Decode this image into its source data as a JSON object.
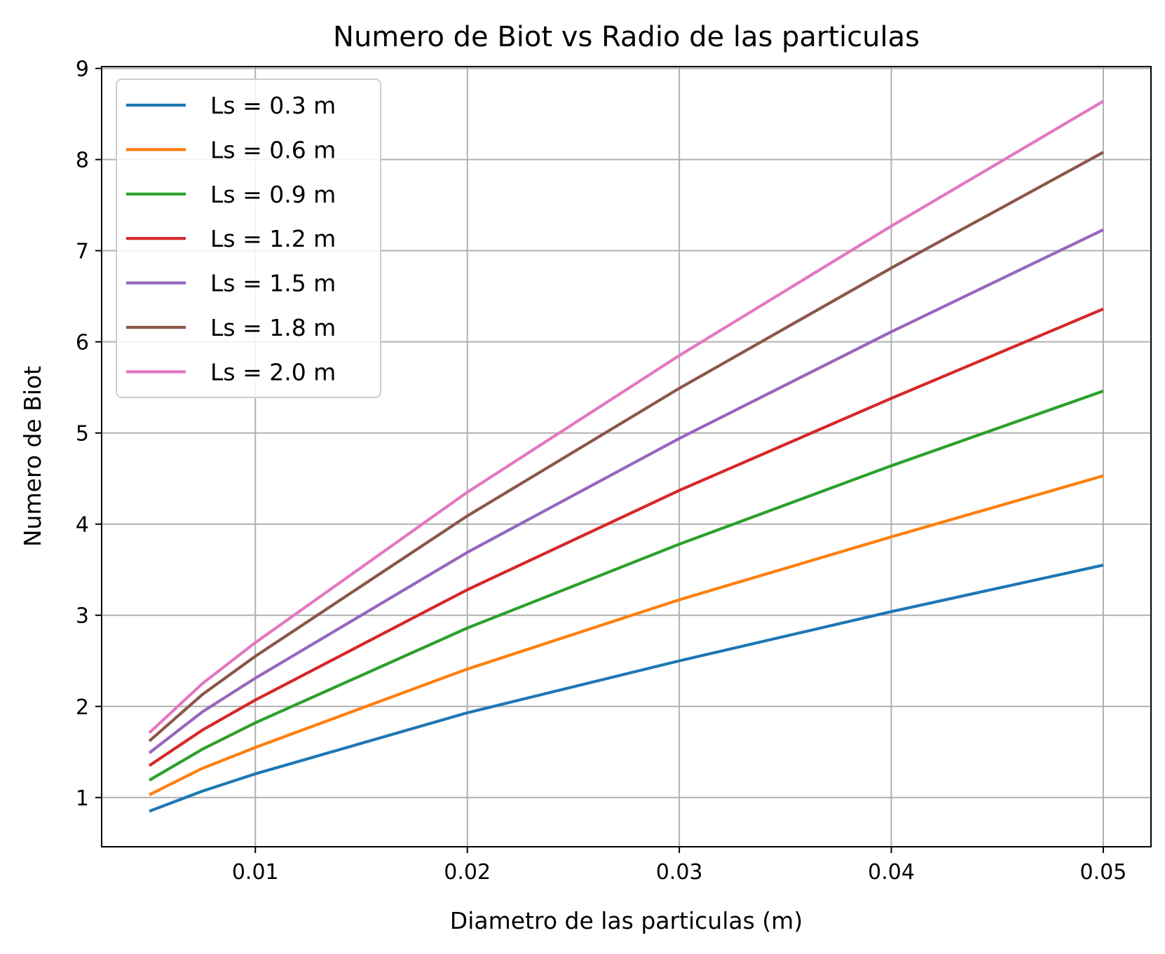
{
  "chart_data": {
    "type": "line",
    "title": "Numero de Biot vs Radio de las particulas",
    "xlabel": "Diametro de las particulas (m)",
    "ylabel": "Numero de Biot",
    "xlim": [
      0.00275,
      0.05225
    ],
    "ylim": [
      0.46,
      9.02
    ],
    "xticks": [
      0.01,
      0.02,
      0.03,
      0.04,
      0.05
    ],
    "xtick_labels": [
      "0.01",
      "0.02",
      "0.03",
      "0.04",
      "0.05"
    ],
    "yticks": [
      1,
      2,
      3,
      4,
      5,
      6,
      7,
      8,
      9
    ],
    "ytick_labels": [
      "1",
      "2",
      "3",
      "4",
      "5",
      "6",
      "7",
      "8",
      "9"
    ],
    "grid": true,
    "legend_position": "top-left",
    "x": [
      0.005,
      0.0075,
      0.01,
      0.02,
      0.03,
      0.04,
      0.05
    ],
    "series": [
      {
        "name": "Ls = 0.3 m",
        "color": "#1f77b4",
        "values": [
          0.85,
          1.07,
          1.26,
          1.93,
          2.5,
          3.04,
          3.55
        ]
      },
      {
        "name": "Ls = 0.6 m",
        "color": "#ff7f0e",
        "values": [
          1.03,
          1.32,
          1.55,
          2.41,
          3.17,
          3.86,
          4.53
        ]
      },
      {
        "name": "Ls = 0.9 m",
        "color": "#2ca02c",
        "values": [
          1.19,
          1.53,
          1.82,
          2.86,
          3.78,
          4.64,
          5.46
        ]
      },
      {
        "name": "Ls = 1.2 m",
        "color": "#d62728",
        "values": [
          1.35,
          1.74,
          2.07,
          3.28,
          4.37,
          5.38,
          6.36
        ]
      },
      {
        "name": "Ls = 1.5 m",
        "color": "#9467bd",
        "values": [
          1.49,
          1.94,
          2.31,
          3.69,
          4.94,
          6.11,
          7.23
        ]
      },
      {
        "name": "Ls = 1.8 m",
        "color": "#8c564b",
        "values": [
          1.62,
          2.13,
          2.55,
          4.09,
          5.49,
          6.81,
          8.08
        ]
      },
      {
        "name": "Ls = 2.0 m",
        "color": "#e377c2",
        "values": [
          1.71,
          2.25,
          2.7,
          4.35,
          5.85,
          7.27,
          8.64
        ]
      }
    ]
  }
}
